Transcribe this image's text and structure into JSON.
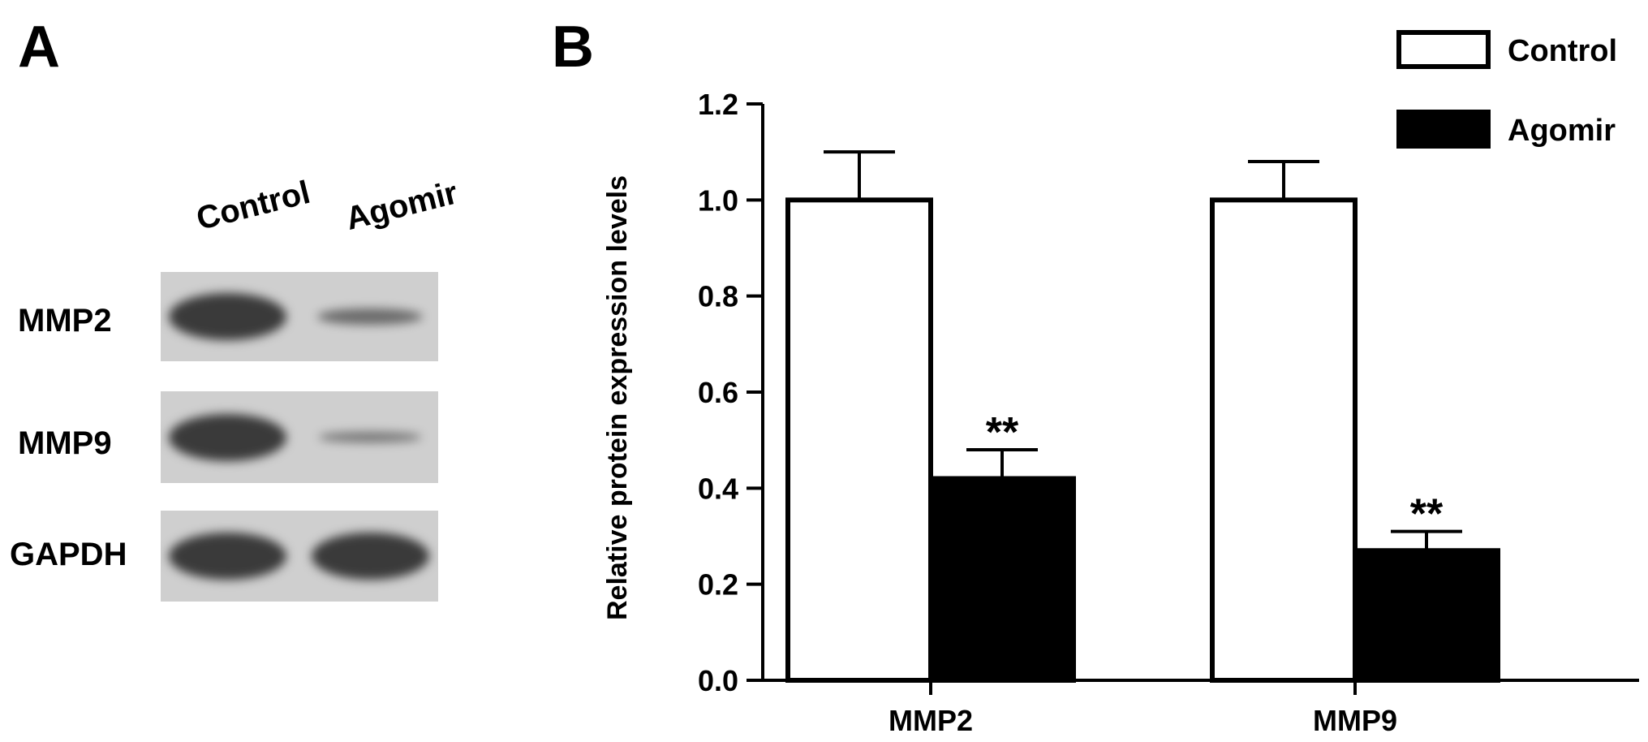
{
  "panel_a": {
    "label": "A",
    "lane_labels": [
      "Control",
      "Agomir"
    ],
    "rows": [
      {
        "name": "MMP2",
        "band_intensity": [
          1.0,
          0.42
        ]
      },
      {
        "name": "MMP9",
        "band_intensity": [
          1.0,
          0.27
        ]
      },
      {
        "name": "GAPDH",
        "band_intensity": [
          1.0,
          1.0
        ]
      }
    ]
  },
  "panel_b": {
    "label": "B"
  },
  "chart_data": {
    "type": "bar",
    "title": "",
    "ylabel": "Relative protein expression levels",
    "xlabel": "",
    "categories": [
      "MMP2",
      "MMP9"
    ],
    "ylim": [
      0.0,
      1.2
    ],
    "yticks": [
      "0.0",
      "0.2",
      "0.4",
      "0.6",
      "0.8",
      "1.0",
      "1.2"
    ],
    "series": [
      {
        "name": "Control",
        "values": [
          1.0,
          1.0
        ],
        "errors": [
          0.1,
          0.08
        ],
        "color": "#ffffff",
        "stroke": "#000000"
      },
      {
        "name": "Agomir",
        "values": [
          0.42,
          0.27
        ],
        "errors": [
          0.06,
          0.04
        ],
        "color": "#000000",
        "stroke": "#000000"
      }
    ],
    "significance": [
      {
        "category": "MMP2",
        "series": "Agomir",
        "text": "**"
      },
      {
        "category": "MMP9",
        "series": "Agomir",
        "text": "**"
      }
    ],
    "legend_position": "top-right",
    "grid": false
  }
}
